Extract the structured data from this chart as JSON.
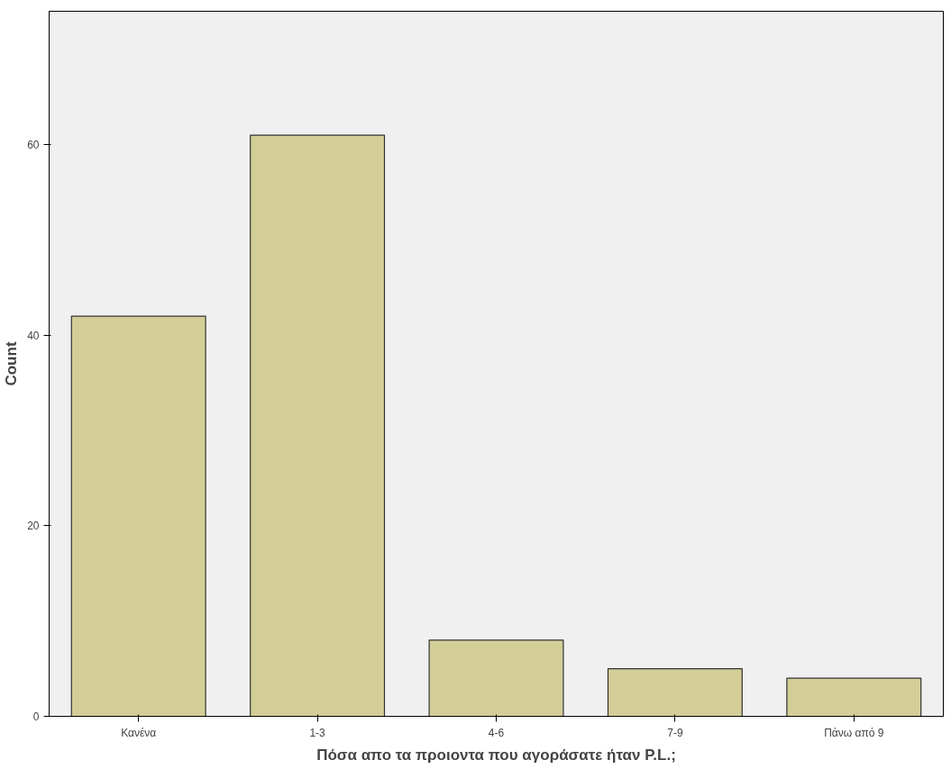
{
  "chart_data": {
    "type": "bar",
    "xlabel": "Πόσα απο τα προιοντα που αγοράσατε ήταν P.L.;",
    "ylabel": "Count",
    "categories": [
      "Κανένα",
      "1-3",
      "4-6",
      "7-9",
      "Πάνω από 9"
    ],
    "values": [
      42,
      61,
      8,
      5,
      4
    ],
    "color": "#d3ce98",
    "ylim": [
      0,
      74
    ],
    "yticks": [
      0,
      20,
      40,
      60
    ],
    "grid": false
  }
}
